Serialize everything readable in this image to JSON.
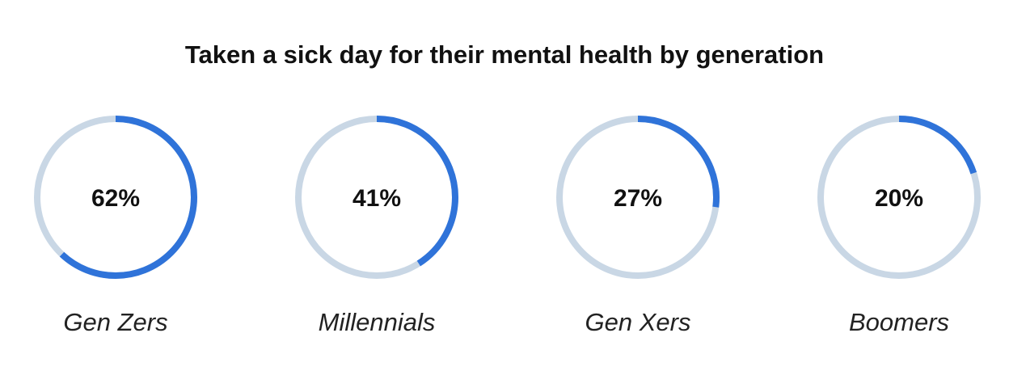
{
  "chart_data": {
    "type": "donut",
    "title": "Taken a sick day for their mental health by generation",
    "categories": [
      "Gen Zers",
      "Millennials",
      "Gen Xers",
      "Boomers"
    ],
    "values": [
      62,
      41,
      27,
      20
    ],
    "value_labels": [
      "62%",
      "41%",
      "27%",
      "20%"
    ],
    "max": 100,
    "grid": false,
    "legend": "none"
  },
  "colors": {
    "progress": "#2f73d9",
    "track": "#c9d7e5",
    "text": "#111111"
  }
}
